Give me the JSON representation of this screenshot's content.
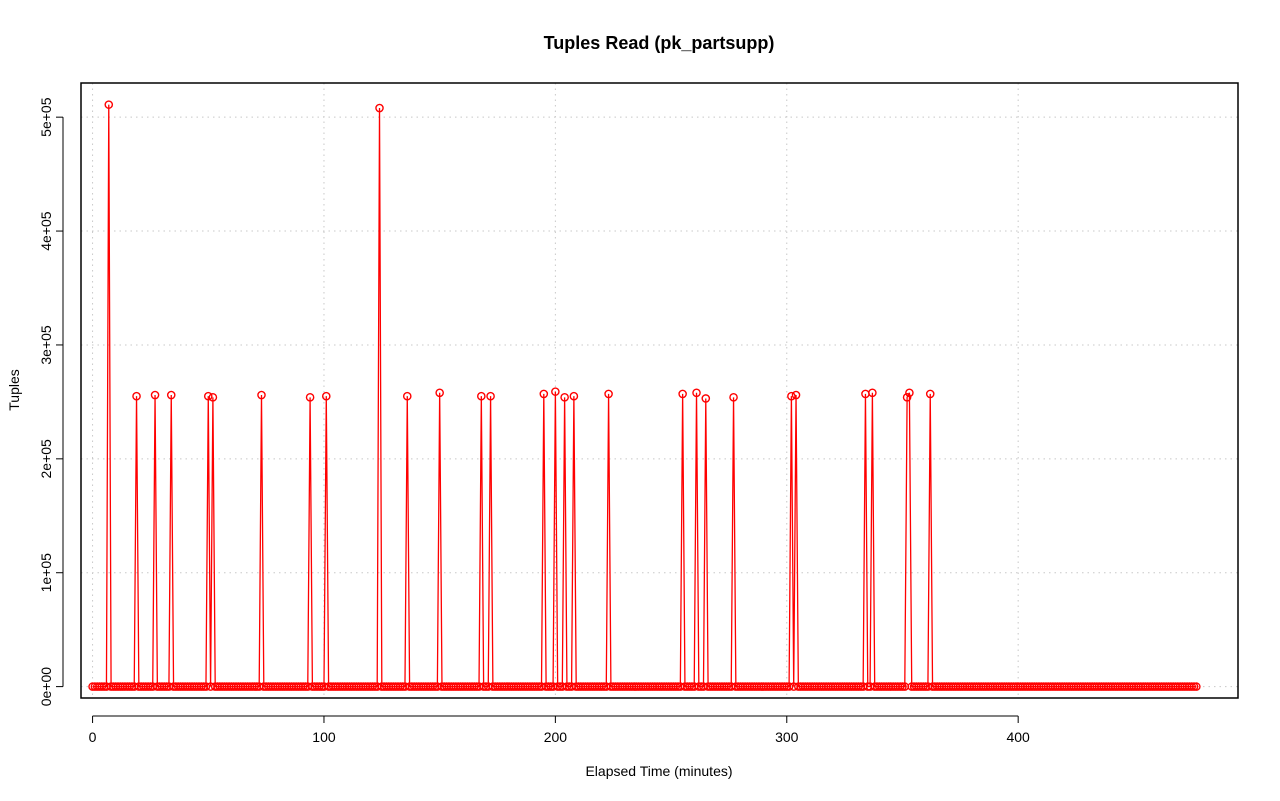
{
  "chart_data": {
    "type": "line",
    "title": "Tuples Read (pk_partsupp)",
    "xlabel": "Elapsed Time (minutes)",
    "ylabel": "Tuples",
    "xlim": [
      -5,
      495
    ],
    "ylim": [
      -10000,
      530000
    ],
    "x_ticks": [
      0,
      100,
      200,
      300,
      400
    ],
    "x_tick_labels": [
      "0",
      "100",
      "200",
      "300",
      "400"
    ],
    "y_ticks": [
      0,
      100000,
      200000,
      300000,
      400000,
      500000
    ],
    "y_tick_labels": [
      "0e+00",
      "1e+05",
      "2e+05",
      "3e+05",
      "4e+05",
      "5e+05"
    ],
    "grid": true,
    "line_color": "#ff0000",
    "marker": "open-circle",
    "baseline": {
      "x_start": 0,
      "x_end": 477,
      "value": 0
    },
    "spikes": [
      {
        "x": 7,
        "y": 511000
      },
      {
        "x": 19,
        "y": 255000
      },
      {
        "x": 27,
        "y": 256000
      },
      {
        "x": 34,
        "y": 256000
      },
      {
        "x": 50,
        "y": 255000
      },
      {
        "x": 52,
        "y": 254000
      },
      {
        "x": 73,
        "y": 256000
      },
      {
        "x": 94,
        "y": 254000
      },
      {
        "x": 101,
        "y": 255000
      },
      {
        "x": 124,
        "y": 508000
      },
      {
        "x": 136,
        "y": 255000
      },
      {
        "x": 150,
        "y": 258000
      },
      {
        "x": 168,
        "y": 255000
      },
      {
        "x": 172,
        "y": 255000
      },
      {
        "x": 195,
        "y": 257000
      },
      {
        "x": 200,
        "y": 259000
      },
      {
        "x": 204,
        "y": 254000
      },
      {
        "x": 208,
        "y": 255000
      },
      {
        "x": 223,
        "y": 257000
      },
      {
        "x": 255,
        "y": 257000
      },
      {
        "x": 261,
        "y": 258000
      },
      {
        "x": 265,
        "y": 253000
      },
      {
        "x": 277,
        "y": 254000
      },
      {
        "x": 302,
        "y": 255000
      },
      {
        "x": 304,
        "y": 256000
      },
      {
        "x": 334,
        "y": 257000
      },
      {
        "x": 337,
        "y": 258000
      },
      {
        "x": 352,
        "y": 254000
      },
      {
        "x": 353,
        "y": 258000
      },
      {
        "x": 362,
        "y": 257000
      }
    ]
  }
}
